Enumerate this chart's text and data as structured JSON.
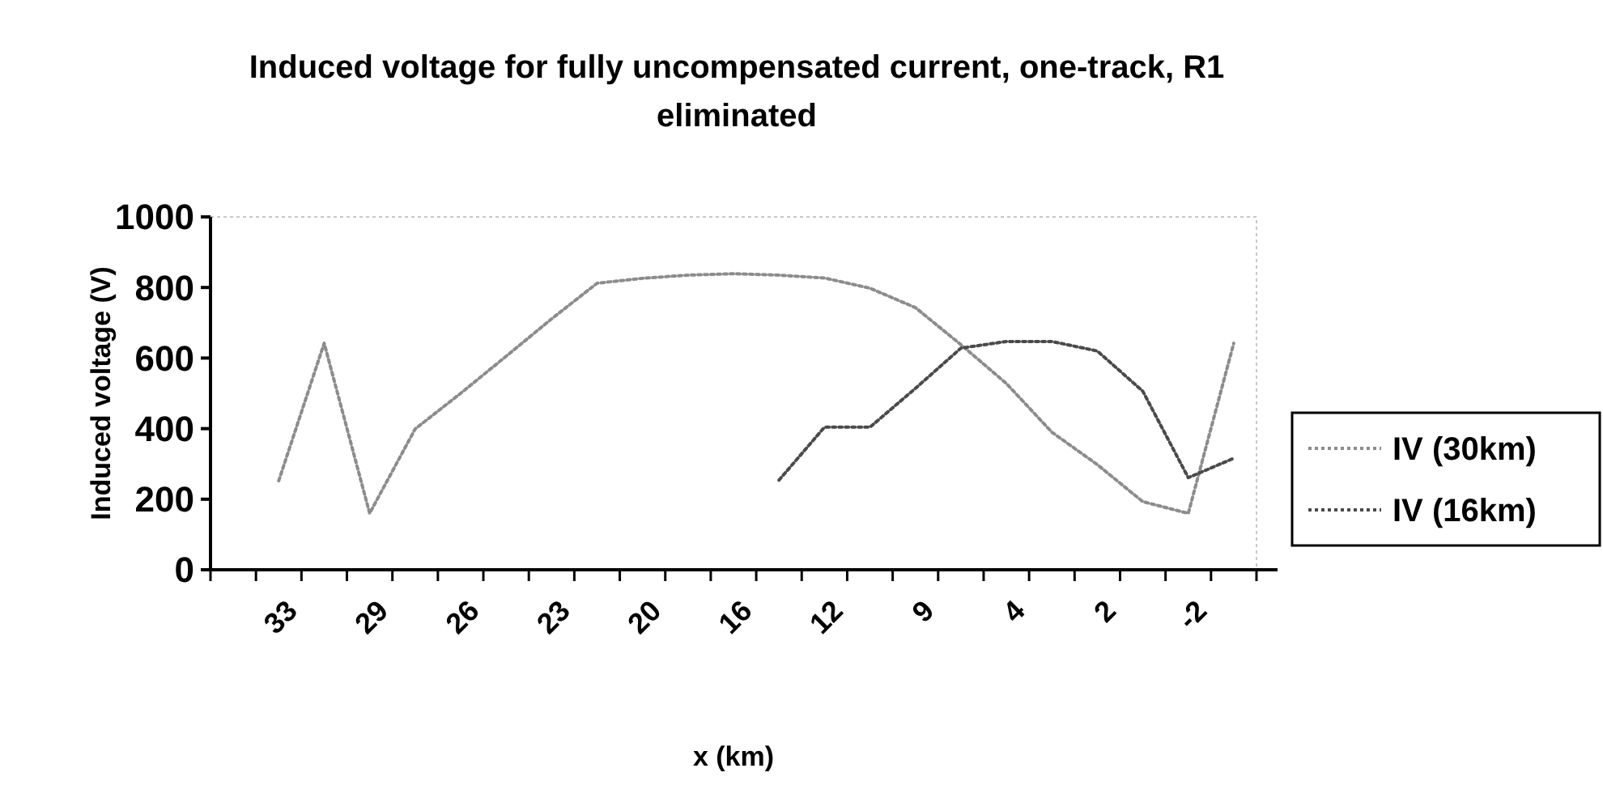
{
  "chart_data": {
    "type": "line",
    "title": "Induced voltage for fully uncompensated current, one-track, R1 eliminated",
    "xlabel": "x (km)",
    "ylabel": "Induced voltage (V)",
    "categories": [
      null,
      "33",
      null,
      "29",
      null,
      "26",
      null,
      "23",
      null,
      "20",
      null,
      "16",
      null,
      "12",
      null,
      "9",
      null,
      "4",
      null,
      "2",
      null,
      "-2",
      null
    ],
    "series": [
      {
        "name": "IV (30km)",
        "color": "#8c8c8c",
        "values": [
          null,
          252,
          642,
          160,
          399,
          500,
          605,
          711,
          812,
          826,
          835,
          839,
          835,
          827,
          798,
          743,
          638,
          528,
          390,
          298,
          193,
          160,
          642
        ]
      },
      {
        "name": "IV (16km)",
        "color": "#4a4a4a",
        "values": [
          null,
          null,
          null,
          null,
          null,
          null,
          null,
          null,
          null,
          null,
          null,
          null,
          254,
          404,
          404,
          514,
          628,
          647,
          647,
          620,
          506,
          261,
          316
        ]
      }
    ],
    "ylim": [
      0,
      1000
    ],
    "yticks": [
      0,
      200,
      400,
      600,
      800,
      1000
    ],
    "grid": false,
    "legend": "right",
    "line_style": "dotted"
  }
}
